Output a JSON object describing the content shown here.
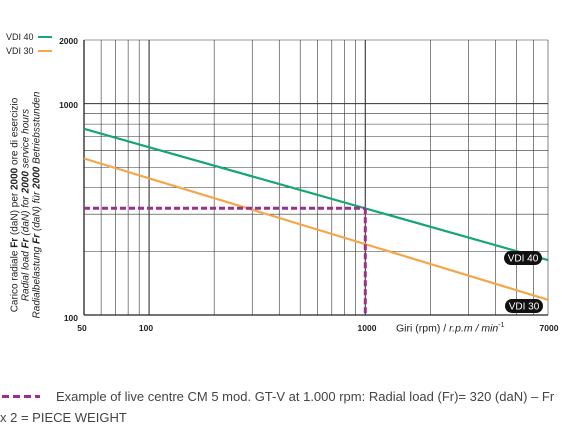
{
  "chart_data": {
    "type": "line",
    "x_scale": "log",
    "y_scale": "log",
    "xlim": [
      50,
      7000
    ],
    "ylim": [
      100,
      2000
    ],
    "x_ticks_labeled": [
      "50",
      "100",
      "1000",
      "7000"
    ],
    "y_ticks_labeled": [
      "100",
      "1000",
      "2000"
    ],
    "xlabel": "Giri (rpm) / r.p.m / min-1",
    "xlabel_parts": {
      "plain": "Giri (rpm) / ",
      "italic": "r.p.m / min",
      "sup": "-1"
    },
    "ylabel_lines": [
      {
        "text_pre": "Carico radiale ",
        "bold": "Fr",
        "text_mid": " (daN) per ",
        "bold2": "2000",
        "text_post": " ore di esercizio",
        "italic": false
      },
      {
        "text_pre": "Radial load ",
        "bold": "Fr",
        "text_mid": " (daN) for ",
        "bold2": "2000",
        "text_post": " service hours",
        "italic": true
      },
      {
        "text_pre": "Radialbelastung ",
        "bold": "Fr",
        "text_mid": " (daN) für ",
        "bold2": "2000",
        "text_post": " Betriebsstunden",
        "italic": true
      }
    ],
    "grid": true,
    "legend_position": "top-left",
    "series": [
      {
        "name": "VDI 40",
        "color": "#17a673",
        "x": [
          50,
          7000
        ],
        "y": [
          760,
          182
        ],
        "end_label": "VDI 40"
      },
      {
        "name": "VDI 30",
        "color": "#f4a64a",
        "x": [
          50,
          7000
        ],
        "y": [
          550,
          118
        ],
        "end_label": "VDI 30"
      }
    ],
    "annotation": {
      "type": "dashed_crosshair",
      "color": "#9b2f8f",
      "x": 1000,
      "y": 320
    }
  },
  "caption": {
    "text": "Example of live centre CM 5 mod. GT-V at 1.000 rpm: Radial load (Fr)= 320 (daN) – Fr x 2 = PIECE WEIGHT"
  }
}
